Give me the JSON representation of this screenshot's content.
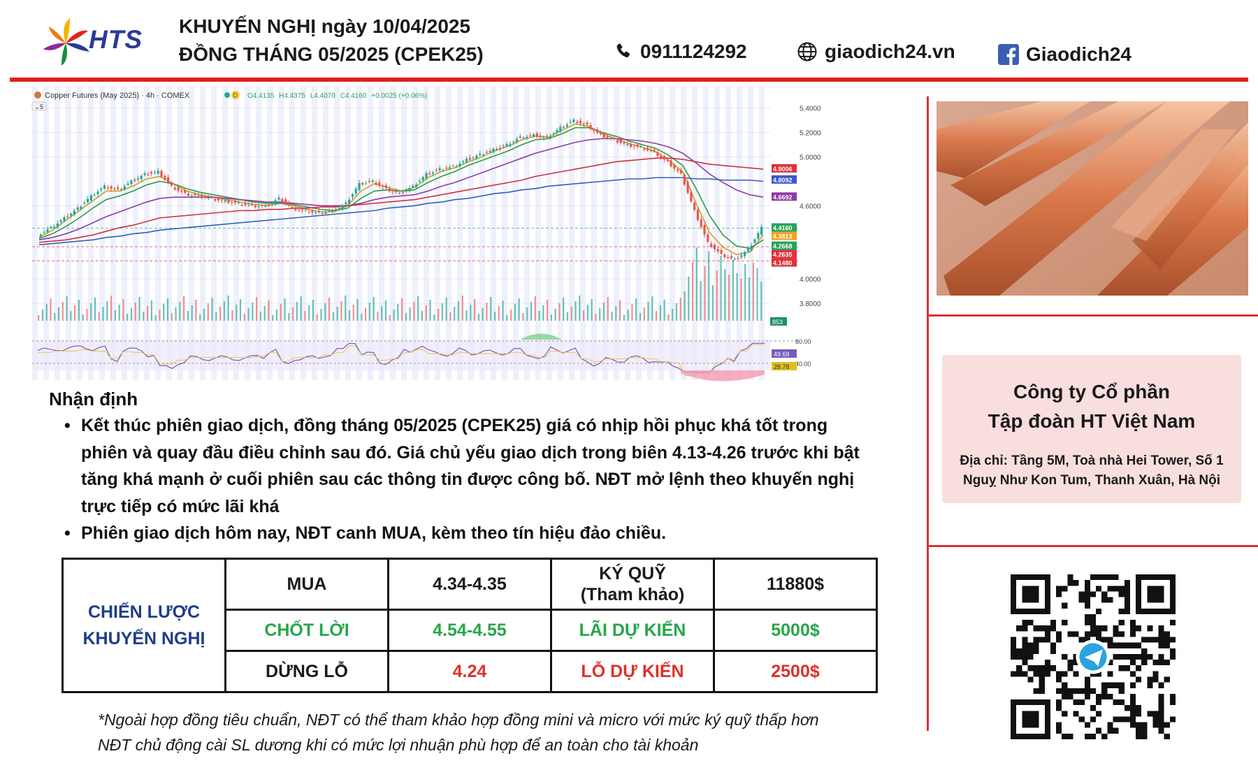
{
  "header": {
    "brand": "HTS",
    "title_line1": "KHUYẾN NGHỊ ngày 10/04/2025",
    "title_line2": "ĐỒNG THÁNG 05/2025 (CPEK25)",
    "phone": "0911124292",
    "website": "giaodich24.vn",
    "facebook": "Giaodich24",
    "icons": [
      "phone-icon",
      "globe-icon",
      "facebook-icon"
    ],
    "accent_color": "#e02020"
  },
  "chart_data": {
    "type": "candlestick",
    "title": "Copper Futures (May 2025) · 4h · COMEX",
    "interval_badge": "D",
    "collapse_label": "5",
    "ohlc_readout": {
      "O": "O4.4135",
      "H": "H4.4375",
      "L": "L4.4070",
      "C": "C4.4160",
      "change": "+0.0025 (+0.06%)"
    },
    "y_ticks": [
      5.4,
      5.2,
      5.0,
      4.6,
      4.0,
      3.8
    ],
    "y_tick_labels": [
      "5.4000",
      "5.2000",
      "5.0000",
      "4.6000",
      "4.0000",
      "3.8000"
    ],
    "ylim": [
      3.6,
      5.45
    ],
    "price_close_series": [
      4.36,
      4.42,
      4.5,
      4.58,
      4.68,
      4.76,
      4.73,
      4.8,
      4.86,
      4.88,
      4.76,
      4.7,
      4.68,
      4.66,
      4.64,
      4.62,
      4.6,
      4.6,
      4.66,
      4.58,
      4.56,
      4.54,
      4.56,
      4.62,
      4.78,
      4.8,
      4.74,
      4.7,
      4.76,
      4.86,
      4.9,
      4.92,
      4.98,
      5.02,
      5.06,
      5.1,
      5.16,
      5.18,
      5.16,
      5.24,
      5.3,
      5.26,
      5.18,
      5.14,
      5.1,
      5.08,
      5.04,
      4.96,
      4.86,
      4.56,
      4.3,
      4.2,
      4.16,
      4.24,
      4.42
    ],
    "ma_lines": [
      {
        "color": "#c8a020",
        "values": [
          4.34,
          4.4,
          4.48,
          4.56,
          4.64,
          4.72,
          4.72,
          4.76,
          4.82,
          4.84,
          4.78,
          4.72,
          4.69,
          4.67,
          4.65,
          4.63,
          4.61,
          4.6,
          4.62,
          4.6,
          4.57,
          4.55,
          4.55,
          4.6,
          4.72,
          4.78,
          4.75,
          4.72,
          4.75,
          4.83,
          4.88,
          4.91,
          4.96,
          5.0,
          5.05,
          5.09,
          5.14,
          5.17,
          5.16,
          5.22,
          5.27,
          5.25,
          5.19,
          5.15,
          5.11,
          5.08,
          5.04,
          4.97,
          4.88,
          4.62,
          4.38,
          4.26,
          4.2,
          4.22,
          4.36
        ]
      },
      {
        "color": "#2f9a4a",
        "values": [
          4.33,
          4.37,
          4.43,
          4.5,
          4.58,
          4.65,
          4.68,
          4.72,
          4.77,
          4.8,
          4.78,
          4.74,
          4.71,
          4.69,
          4.67,
          4.65,
          4.63,
          4.62,
          4.62,
          4.61,
          4.59,
          4.57,
          4.56,
          4.58,
          4.66,
          4.72,
          4.73,
          4.72,
          4.73,
          4.79,
          4.84,
          4.88,
          4.93,
          4.97,
          5.01,
          5.05,
          5.1,
          5.14,
          5.15,
          5.19,
          5.24,
          5.24,
          5.2,
          5.17,
          5.13,
          5.1,
          5.07,
          5.01,
          4.93,
          4.74,
          4.52,
          4.36,
          4.27,
          4.25,
          4.32
        ]
      },
      {
        "color": "#8e3aa8",
        "values": [
          4.32,
          4.34,
          4.37,
          4.41,
          4.46,
          4.51,
          4.55,
          4.59,
          4.63,
          4.66,
          4.67,
          4.67,
          4.67,
          4.67,
          4.66,
          4.65,
          4.64,
          4.63,
          4.63,
          4.62,
          4.61,
          4.6,
          4.6,
          4.6,
          4.62,
          4.65,
          4.67,
          4.68,
          4.69,
          4.72,
          4.76,
          4.79,
          4.83,
          4.87,
          4.91,
          4.95,
          4.99,
          5.03,
          5.06,
          5.09,
          5.12,
          5.14,
          5.15,
          5.15,
          5.14,
          5.13,
          5.11,
          5.08,
          5.03,
          4.95,
          4.86,
          4.79,
          4.73,
          4.69,
          4.67
        ]
      },
      {
        "color": "#d03040",
        "values": [
          4.3,
          4.31,
          4.32,
          4.34,
          4.36,
          4.39,
          4.42,
          4.44,
          4.47,
          4.5,
          4.51,
          4.52,
          4.53,
          4.54,
          4.55,
          4.56,
          4.56,
          4.57,
          4.57,
          4.58,
          4.58,
          4.59,
          4.59,
          4.6,
          4.61,
          4.62,
          4.63,
          4.64,
          4.65,
          4.67,
          4.69,
          4.71,
          4.73,
          4.75,
          4.77,
          4.79,
          4.81,
          4.84,
          4.86,
          4.88,
          4.9,
          4.92,
          4.94,
          4.96,
          4.97,
          4.98,
          4.99,
          4.99,
          4.98,
          4.96,
          4.94,
          4.93,
          4.92,
          4.91,
          4.9
        ]
      },
      {
        "color": "#3060c0",
        "values": [
          4.28,
          4.29,
          4.3,
          4.31,
          4.32,
          4.34,
          4.35,
          4.37,
          4.38,
          4.4,
          4.41,
          4.42,
          4.43,
          4.44,
          4.45,
          4.46,
          4.47,
          4.48,
          4.49,
          4.5,
          4.51,
          4.52,
          4.53,
          4.54,
          4.55,
          4.56,
          4.58,
          4.59,
          4.6,
          4.62,
          4.63,
          4.65,
          4.66,
          4.68,
          4.7,
          4.71,
          4.73,
          4.74,
          4.76,
          4.77,
          4.78,
          4.79,
          4.8,
          4.81,
          4.82,
          4.82,
          4.83,
          4.83,
          4.83,
          4.82,
          4.82,
          4.81,
          4.81,
          4.81,
          4.8
        ]
      }
    ],
    "price_labels": [
      {
        "value": 4.9006,
        "text": "4.9006",
        "color": "#e0303a"
      },
      {
        "value": 4.8092,
        "text": "4.8092",
        "color": "#3b58c8"
      },
      {
        "value": 4.6692,
        "text": "4.6692",
        "color": "#8e3aa8"
      },
      {
        "value": 4.416,
        "text": "4.4160",
        "color": "#26a65b"
      },
      {
        "value": 4.3813,
        "text": "4.3813",
        "color": "#f0a020"
      },
      {
        "value": 4.2668,
        "text": "4.2668",
        "color": "#26a65b"
      },
      {
        "value": 4.2635,
        "text": "4.2635",
        "color": "#e0303a"
      },
      {
        "value": 4.148,
        "text": "4.1480",
        "color": "#e0303a"
      }
    ],
    "volume_label": "853",
    "rsi": {
      "ticks": [
        80,
        40
      ],
      "tick_labels": [
        "80.00",
        "40.00"
      ],
      "labels": [
        {
          "value": 49.69,
          "text": "49.69",
          "color": "#7a5ab8"
        },
        {
          "value": 28.78,
          "text": "28.78",
          "color": "#e0c020"
        }
      ]
    }
  },
  "right_panel": {
    "company_name_line1": "Công ty Cổ phần",
    "company_name_line2": "Tập đoàn HT Việt Nam",
    "address_line1": "Địa chỉ: Tầng 5M, Toà nhà Hei Tower, Số 1",
    "address_line2": "Nguỵ Như Kon Tum, Thanh Xuân, Hà Nội",
    "qr_center_icon": "telegram-icon"
  },
  "analysis": {
    "heading": "Nhận định",
    "bullets": [
      {
        "lines": [
          "Kết thúc phiên giao dịch, đồng tháng 05/2025 (CPEK25) giá có nhịp hồi phục khá tốt trong",
          "phiên và quay đầu điều chỉnh sau đó. Giá chủ yếu giao dịch trong biên 4.13-4.26 trước khi bật",
          "tăng khá mạnh ở cuối phiên sau các thông tin được công bố. NĐT mở lệnh theo khuyến nghị",
          "trực tiếp có mức lãi khá"
        ]
      },
      {
        "lines": [
          "Phiên giao dịch hôm nay, NĐT canh MUA, kèm theo tín hiệu đảo chiều."
        ]
      }
    ]
  },
  "strategy": {
    "label_line1": "CHIẾN LƯỢC",
    "label_line2": "KHUYẾN NGHỊ",
    "rows": [
      {
        "action": "MUA",
        "range": "4.34-4.35",
        "metric_line1": "KÝ QUỸ",
        "metric_line2": "(Tham khảo)",
        "amount": "11880$"
      },
      {
        "action": "CHỐT LỜI",
        "range": "4.54-4.55",
        "metric_line1": "LÃI DỰ KIẾN",
        "metric_line2": "",
        "amount": "5000$"
      },
      {
        "action": "DỪNG LỖ",
        "range": "4.24",
        "metric_line1": "LỖ DỰ KIẾN",
        "metric_line2": "",
        "amount": "2500$"
      }
    ],
    "colors": {
      "label": "#1f3d88",
      "profit": "#27a64a",
      "loss": "#e0302b"
    }
  },
  "footnote": {
    "line1": "*Ngoài hợp đồng tiêu chuẩn, NĐT có thể tham khảo hợp đồng mini và micro với mức ký quỹ thấp hơn",
    "line2": "NĐT chủ động cài SL dương khi có mức lợi nhuận phù hợp để an toàn cho tài khoản"
  }
}
